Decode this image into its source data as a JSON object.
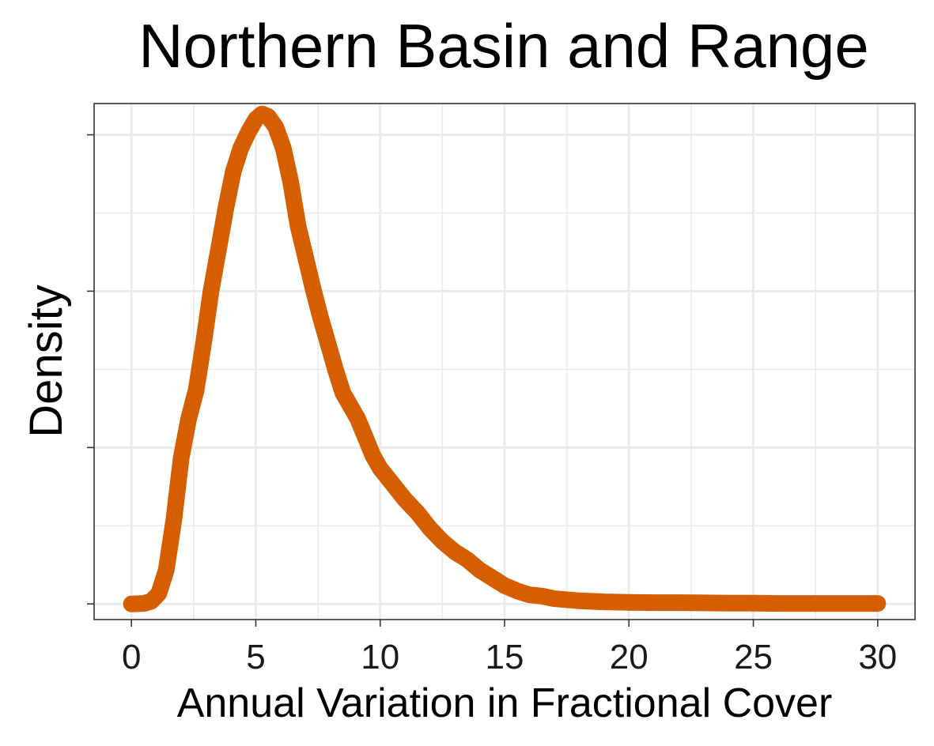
{
  "chart_data": {
    "type": "line",
    "title": "Northern Basin and Range",
    "xlabel": "Annual Variation in Fractional Cover",
    "ylabel": "Density",
    "xlim": [
      -1.5,
      31.5
    ],
    "ylim": [
      -0.006,
      0.192
    ],
    "grid": true,
    "y_tick_labels_shown": false,
    "x_ticks": [
      0,
      5,
      10,
      15,
      20,
      25,
      30
    ],
    "y_major_ticks": [
      0,
      0.06,
      0.12,
      0.18
    ],
    "y_minor_ticks": [
      0.03,
      0.09,
      0.15
    ],
    "series": [
      {
        "color": "#D55E00",
        "x": [
          0,
          0.5,
          0.8,
          1.1,
          1.4,
          1.7,
          2.0,
          2.3,
          2.6,
          2.9,
          3.2,
          3.5,
          3.8,
          4.1,
          4.4,
          4.7,
          5.0,
          5.25,
          5.5,
          5.8,
          6.1,
          6.4,
          6.7,
          7.0,
          7.3,
          7.6,
          7.9,
          8.2,
          8.5,
          8.8,
          9.1,
          9.4,
          9.7,
          10.0,
          10.5,
          11.0,
          11.5,
          12.0,
          12.5,
          13.0,
          13.5,
          14.0,
          14.5,
          15.0,
          15.5,
          16.0,
          16.5,
          17.0,
          18.0,
          19.0,
          20.0,
          21.0,
          22.0,
          23.0,
          24.0,
          25.0,
          26.0,
          27.0,
          28.0,
          29.0,
          30.0
        ],
        "y": [
          0,
          0.0002,
          0.001,
          0.004,
          0.013,
          0.032,
          0.056,
          0.071,
          0.082,
          0.1,
          0.12,
          0.136,
          0.152,
          0.166,
          0.175,
          0.181,
          0.186,
          0.188,
          0.187,
          0.183,
          0.175,
          0.162,
          0.145,
          0.133,
          0.121,
          0.11,
          0.1,
          0.09,
          0.081,
          0.076,
          0.071,
          0.064,
          0.057,
          0.052,
          0.046,
          0.04,
          0.035,
          0.029,
          0.024,
          0.02,
          0.017,
          0.013,
          0.01,
          0.007,
          0.005,
          0.0035,
          0.003,
          0.002,
          0.0012,
          0.0008,
          0.0006,
          0.0005,
          0.0005,
          0.0004,
          0.0003,
          0.0003,
          0.0002,
          0.0002,
          0.0002,
          0.0002,
          0.0002
        ]
      }
    ]
  }
}
